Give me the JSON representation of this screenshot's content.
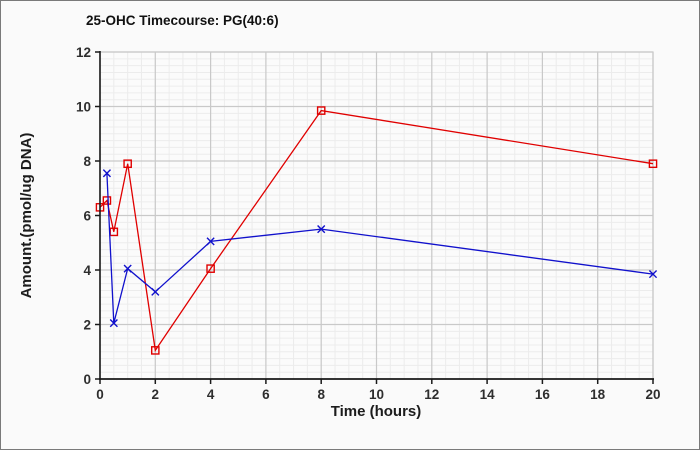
{
  "window": {
    "background": "#fafafa",
    "border_color": "#7a7a7a"
  },
  "chart_data": {
    "type": "line",
    "title": "25-OHC Timecourse: PG(40:6)",
    "xlabel": "Time (hours)",
    "ylabel": "Amount.(pmol/ug DNA)",
    "xlim": [
      0,
      20
    ],
    "ylim": [
      0,
      12
    ],
    "xticks": [
      0,
      2,
      4,
      6,
      8,
      10,
      12,
      14,
      16,
      18,
      20
    ],
    "yticks": [
      0,
      2,
      4,
      6,
      8,
      10,
      12
    ],
    "grid": {
      "on": true,
      "minor_x_step": 0.5,
      "minor_y_step": 0.25,
      "minor_color": "#ececec",
      "major_color": "#c9c9c9"
    },
    "plot_background": "#fbfbfb",
    "axis_color": "#1a1a1a",
    "legend_position": "none",
    "series": [
      {
        "id": "red-open-squares",
        "marker": "square-open",
        "color": "#e00000",
        "points": [
          [
            0,
            6.3
          ],
          [
            0.25,
            6.55
          ],
          [
            0.5,
            5.4
          ],
          [
            1,
            7.9
          ],
          [
            2,
            1.05
          ],
          [
            4,
            4.05
          ],
          [
            8,
            9.85
          ],
          [
            20,
            7.9
          ]
        ]
      },
      {
        "id": "blue-x-crosses",
        "marker": "x",
        "color": "#1111cc",
        "points": [
          [
            0.25,
            7.55
          ],
          [
            0.5,
            2.05
          ],
          [
            1,
            4.05
          ],
          [
            2,
            3.2
          ],
          [
            4,
            5.05
          ],
          [
            8,
            5.5
          ],
          [
            20,
            3.85
          ]
        ]
      }
    ]
  }
}
